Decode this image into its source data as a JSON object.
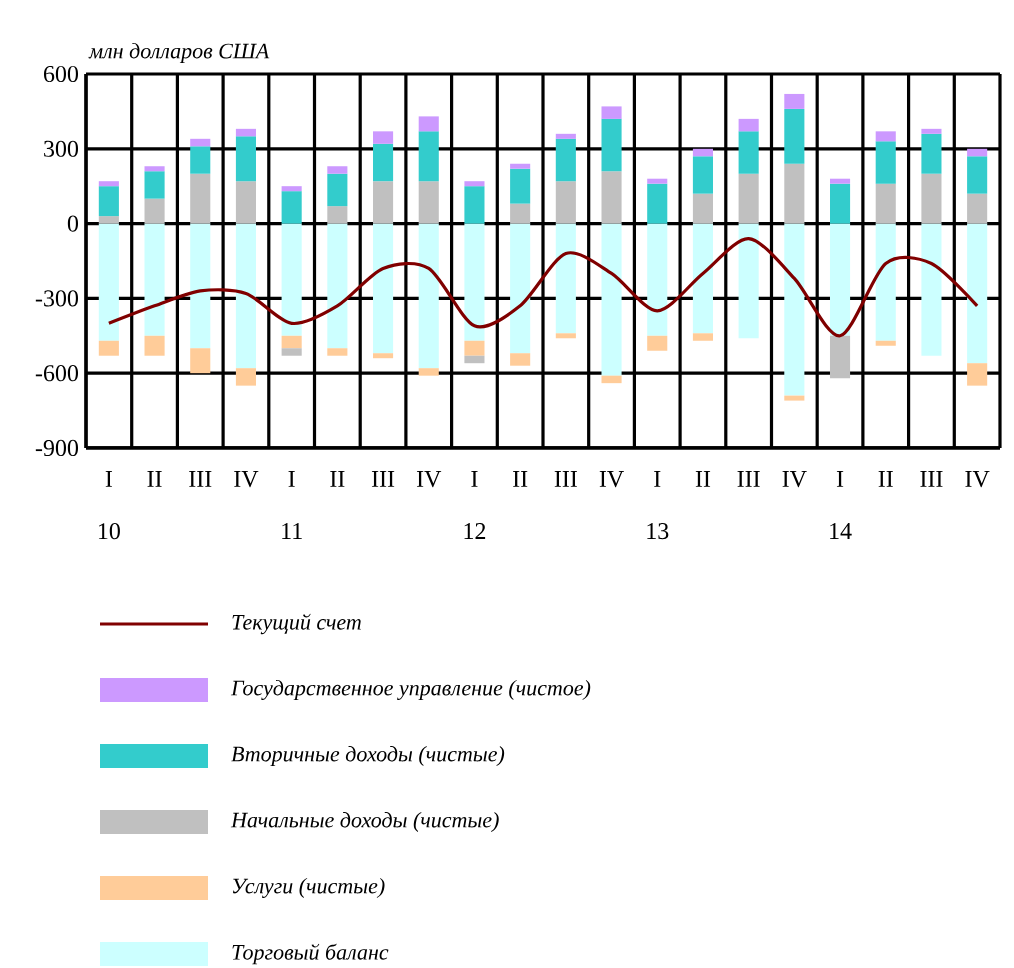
{
  "chart_data": {
    "type": "bar",
    "stacked": true,
    "ylabel": "млн долларов США",
    "categories": [
      "I",
      "II",
      "III",
      "IV",
      "I",
      "II",
      "III",
      "IV",
      "I",
      "II",
      "III",
      "IV",
      "I",
      "II",
      "III",
      "IV",
      "I",
      "II",
      "III",
      "IV"
    ],
    "annotations": [
      "10",
      "11",
      "12",
      "13",
      "14"
    ],
    "series": [
      {
        "name": "Торговый баланс",
        "color": "#ccffff",
        "values": [
          -470,
          -450,
          -500,
          -580,
          -450,
          -500,
          -520,
          -580,
          -470,
          -520,
          -440,
          -610,
          -450,
          -440,
          -460,
          -690,
          -450,
          -470,
          -530,
          -560
        ]
      },
      {
        "name": "Услуги (чистые)",
        "color": "#ffcc99",
        "values": [
          -60,
          -80,
          -100,
          -70,
          -50,
          -30,
          -20,
          -30,
          -60,
          -50,
          -20,
          -30,
          -60,
          -30,
          0,
          -20,
          0,
          -20,
          0,
          -90
        ]
      },
      {
        "name": "Начальные доходы (чистые)",
        "color": "#c0c0c0",
        "values": [
          30,
          100,
          200,
          170,
          -30,
          70,
          170,
          170,
          -30,
          80,
          170,
          210,
          0,
          120,
          200,
          240,
          -170,
          160,
          200,
          120
        ]
      },
      {
        "name": "Вторичные доходы (чистые)",
        "color": "#33cccc",
        "values": [
          120,
          110,
          110,
          180,
          130,
          130,
          150,
          200,
          150,
          140,
          170,
          210,
          160,
          150,
          170,
          220,
          160,
          170,
          160,
          150
        ]
      },
      {
        "name": "Государственное управление (чистое)",
        "color": "#cc99ff",
        "values": [
          20,
          20,
          30,
          30,
          20,
          30,
          50,
          60,
          20,
          20,
          20,
          50,
          20,
          30,
          50,
          60,
          20,
          40,
          20,
          30
        ]
      },
      {
        "name": "Текущий счет",
        "type": "line",
        "color": "#800000",
        "values": [
          -400,
          -330,
          -270,
          -280,
          -400,
          -330,
          -180,
          -180,
          -410,
          -330,
          -120,
          -200,
          -350,
          -200,
          -60,
          -220,
          -450,
          -160,
          -160,
          -330
        ]
      }
    ],
    "ylim": [
      -900,
      600
    ],
    "yticks": [
      -900,
      -600,
      -300,
      0,
      300,
      600
    ],
    "grid": true,
    "legend": "bottom",
    "marker": "none"
  }
}
